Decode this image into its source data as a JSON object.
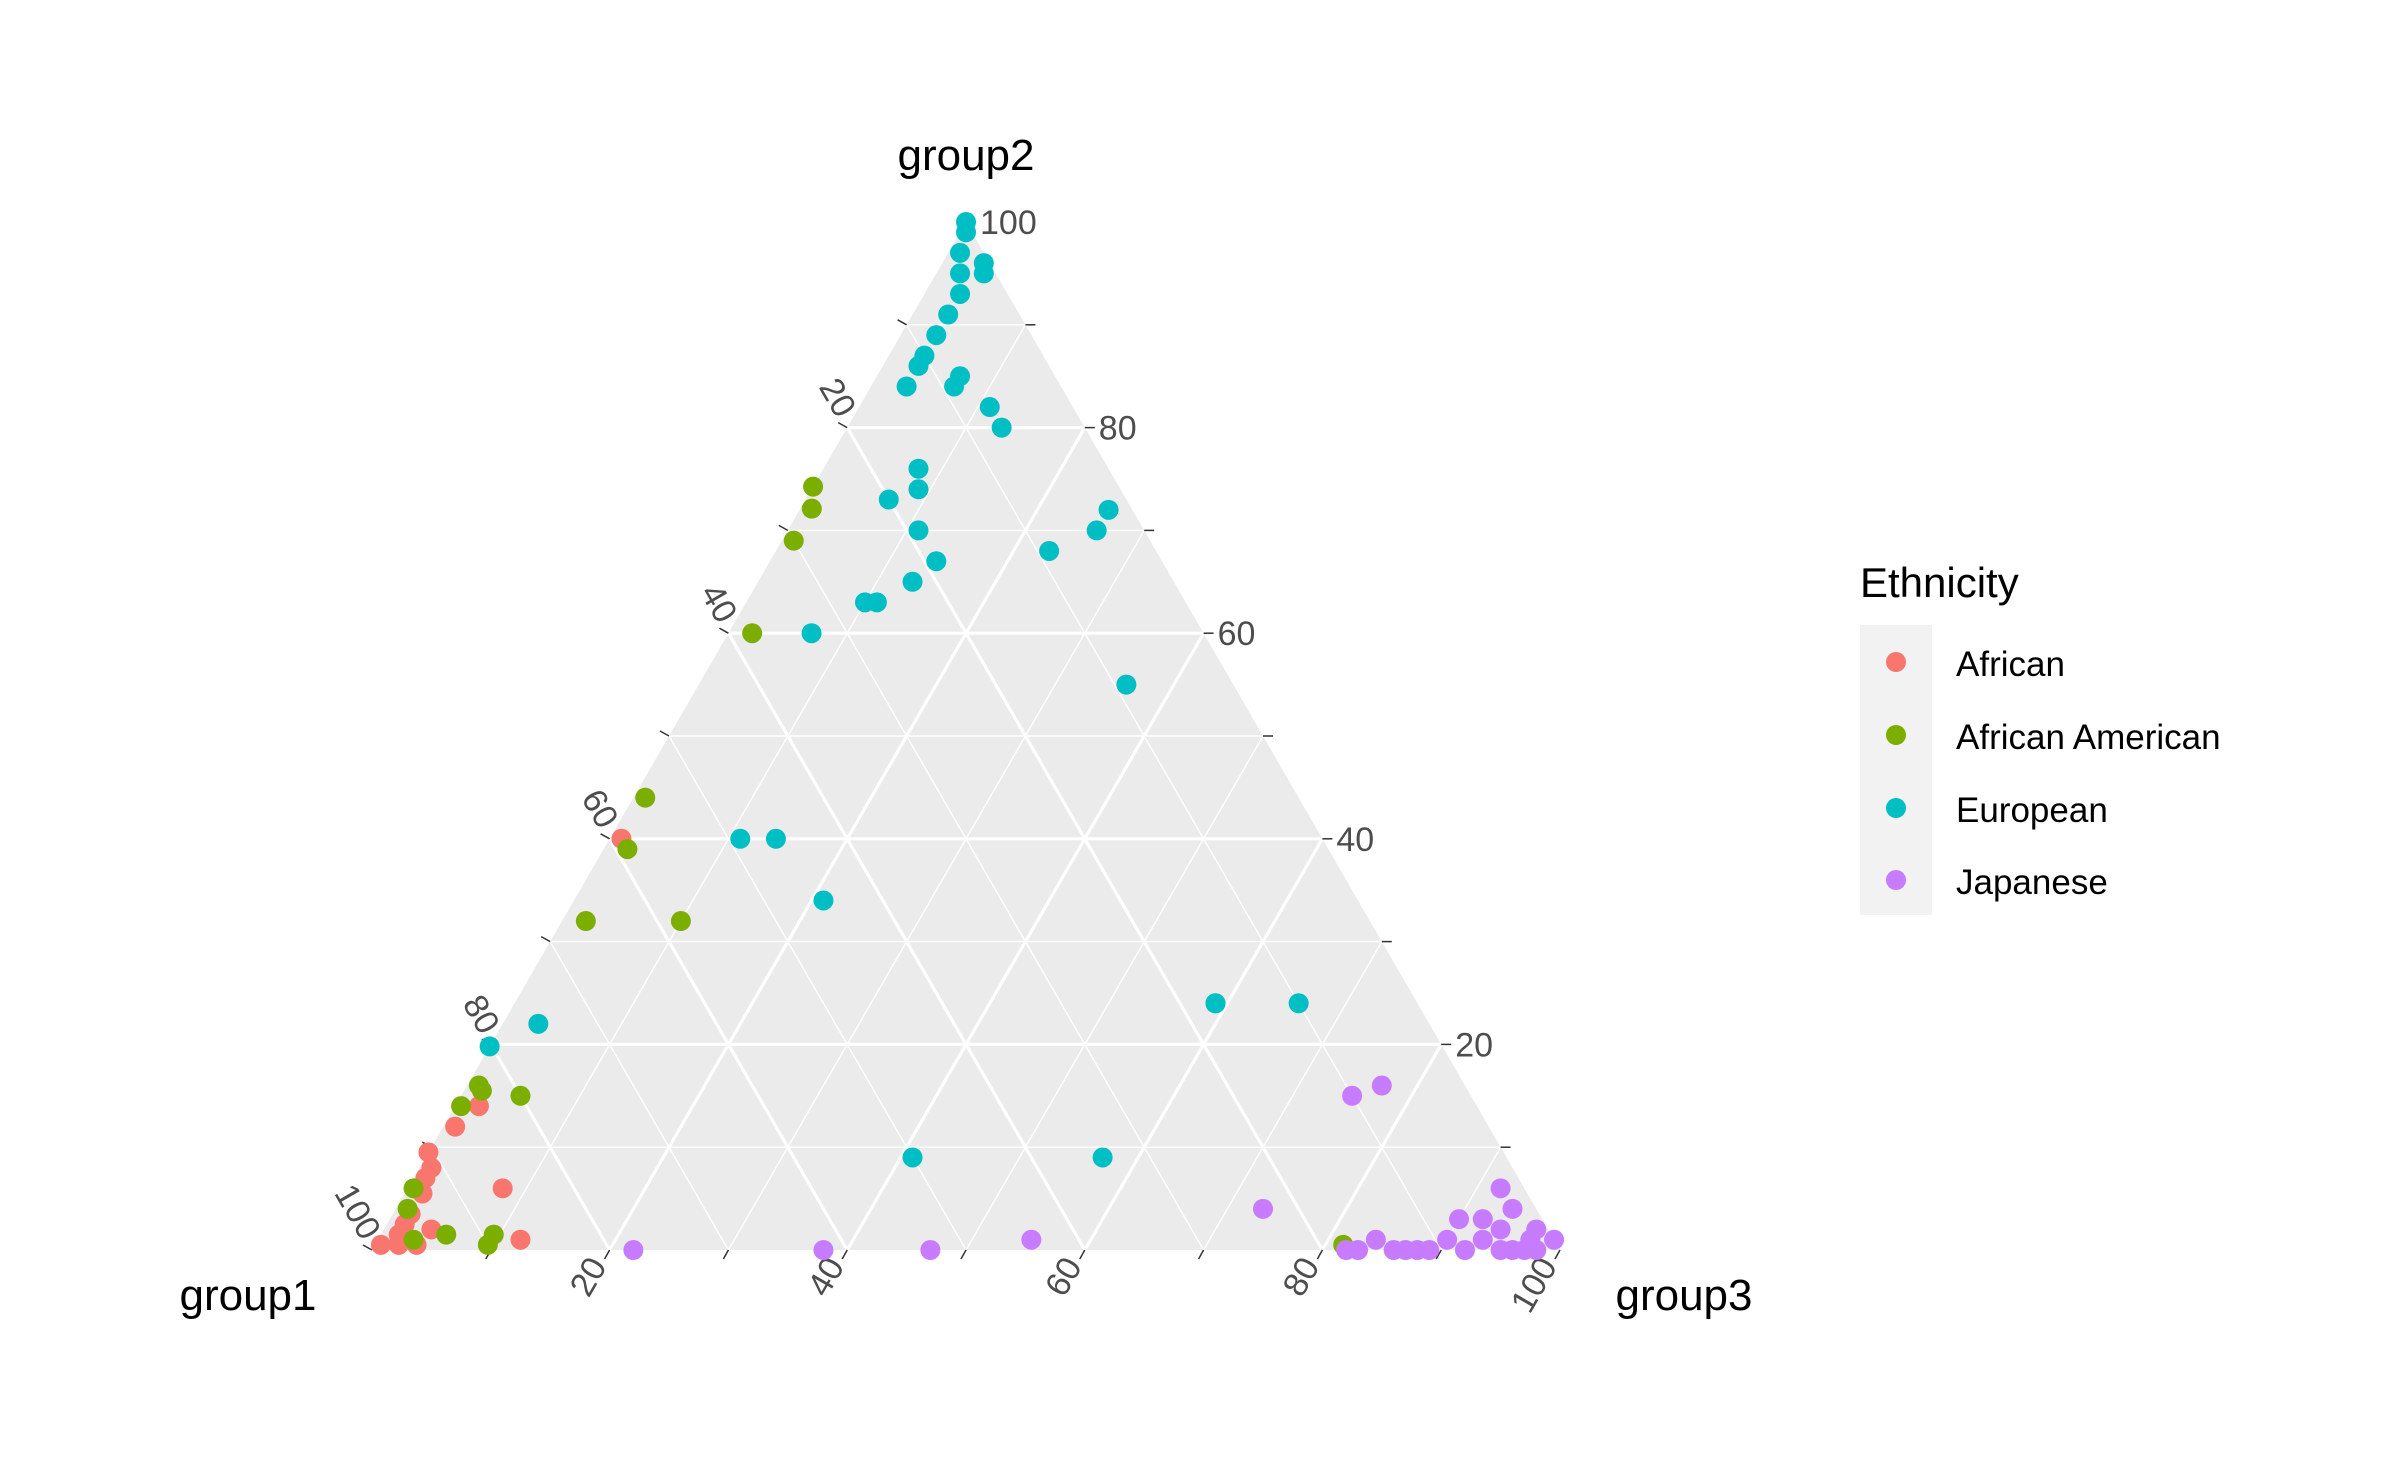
{
  "chart_data": {
    "type": "scatter",
    "subtype": "ternary",
    "axes": {
      "left": "group1",
      "top": "group2",
      "right": "group3"
    },
    "ticks": [
      "20",
      "40",
      "60",
      "80",
      "100"
    ],
    "tick_values": [
      20,
      40,
      60,
      80,
      100
    ],
    "grid": true,
    "legend": {
      "title": "Ethnicity",
      "position": "right",
      "items": [
        "African",
        "African American",
        "European",
        "Japanese"
      ]
    },
    "colors": {
      "African": "#F8766D",
      "African American": "#7CAE00",
      "European": "#00BFC4",
      "Japanese": "#C77CFF",
      "panel": "#EBEBEB",
      "grid": "#FFFFFF"
    },
    "series": [
      {
        "name": "African",
        "points": [
          [
            97.5,
            0.5,
            2
          ],
          [
            97,
            1.5,
            1.5
          ],
          [
            96,
            2.5,
            1.5
          ],
          [
            95,
            3.5,
            1.5
          ],
          [
            93,
            5.5,
            1.5
          ],
          [
            92,
            7,
            1
          ],
          [
            90.5,
            9.5,
            0
          ],
          [
            87,
            12,
            1
          ],
          [
            84,
            14,
            2
          ],
          [
            86,
            6,
            8
          ],
          [
            94,
            2,
            4
          ],
          [
            96,
            0.5,
            3.5
          ],
          [
            91,
            8,
            1
          ],
          [
            59,
            40,
            1
          ],
          [
            87,
            1,
            12
          ],
          [
            99,
            0.5,
            0.5
          ]
        ]
      },
      {
        "name": "African American",
        "points": [
          [
            96,
            1,
            3
          ],
          [
            95,
            4,
            1
          ],
          [
            93.5,
            6,
            0.5
          ],
          [
            93,
            1.5,
            5.5
          ],
          [
            90,
            0.5,
            9.5
          ],
          [
            89,
            1.5,
            9.5
          ],
          [
            85.5,
            14,
            0.5
          ],
          [
            83,
            16,
            1
          ],
          [
            83,
            15.5,
            1.5
          ],
          [
            80,
            15,
            5
          ],
          [
            66,
            32,
            2
          ],
          [
            58,
            32,
            10
          ],
          [
            59,
            39,
            2
          ],
          [
            55,
            44,
            1
          ],
          [
            30,
            69,
            1
          ],
          [
            28,
            75,
            1
          ],
          [
            26,
            75,
            0
          ],
          [
            18,
            0.5,
            81.5
          ],
          [
            38,
            60,
            2
          ]
        ]
      },
      {
        "name": "European",
        "points": [
          [
            0,
            100,
            0
          ],
          [
            0.5,
            99,
            0.5
          ],
          [
            2,
            97,
            1
          ],
          [
            0.5,
            96,
            3.5
          ],
          [
            1,
            95,
            4
          ],
          [
            3,
            95,
            2
          ],
          [
            4,
            93,
            3
          ],
          [
            6,
            91,
            3
          ],
          [
            8,
            89,
            3
          ],
          [
            10,
            87,
            3
          ],
          [
            11,
            86,
            3
          ],
          [
            8,
            85,
            7
          ],
          [
            13,
            84,
            3
          ],
          [
            9,
            84,
            7
          ],
          [
            7,
            82,
            11
          ],
          [
            7,
            80,
            13
          ],
          [
            16,
            76,
            8
          ],
          [
            17,
            74,
            9
          ],
          [
            20,
            73,
            7
          ],
          [
            19,
            70,
            11
          ],
          [
            2,
            72,
            26
          ],
          [
            4,
            70,
            26
          ],
          [
            9,
            68,
            23
          ],
          [
            19,
            67,
            14
          ],
          [
            22,
            65,
            13
          ],
          [
            26,
            63,
            11
          ],
          [
            27,
            63,
            10
          ],
          [
            33,
            60,
            7
          ],
          [
            9,
            55,
            36
          ],
          [
            49,
            40,
            11
          ],
          [
            46,
            40,
            14
          ],
          [
            45,
            34,
            21
          ],
          [
            17,
            24,
            59
          ],
          [
            75,
            22,
            3
          ],
          [
            81,
            20,
            0
          ],
          [
            10,
            24,
            66
          ],
          [
            17,
            24,
            59
          ],
          [
            34,
            9,
            57
          ],
          [
            50,
            9,
            41
          ]
        ]
      },
      {
        "name": "Japanese",
        "points": [
          [
            2,
            0,
            98
          ],
          [
            0,
            1,
            99
          ],
          [
            1,
            2,
            97
          ],
          [
            2,
            4,
            94
          ],
          [
            2,
            1,
            97
          ],
          [
            3,
            0,
            97
          ],
          [
            4,
            0,
            96
          ],
          [
            5,
            0,
            95
          ],
          [
            4,
            2,
            94
          ],
          [
            6,
            1,
            93
          ],
          [
            7,
            3,
            90
          ],
          [
            8,
            0,
            92
          ],
          [
            11,
            0,
            89
          ],
          [
            12,
            0,
            88
          ],
          [
            13,
            0,
            87
          ],
          [
            14,
            0,
            86
          ],
          [
            15,
            1,
            84
          ],
          [
            17,
            0,
            83
          ],
          [
            18,
            0,
            82
          ],
          [
            10,
            15,
            75
          ],
          [
            7,
            16,
            77
          ],
          [
            23,
            4,
            73
          ],
          [
            44,
            1,
            55
          ],
          [
            53,
            0,
            47
          ],
          [
            62,
            0,
            38
          ],
          [
            78,
            0,
            22
          ],
          [
            2,
            6,
            92
          ],
          [
            5,
            3,
            92
          ],
          [
            9,
            1,
            90
          ]
        ]
      }
    ]
  }
}
